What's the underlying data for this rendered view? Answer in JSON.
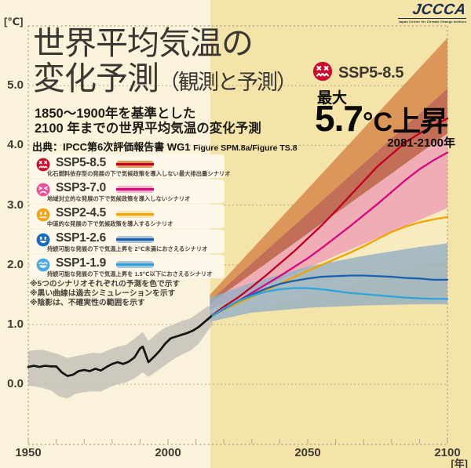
{
  "logo": {
    "name": "JCCCA",
    "tagline": "Japan Center for Climate Change Actions"
  },
  "header": {
    "y_unit": "[℃]",
    "title_line1": "世界平均気温の",
    "title_line2": "変化予測",
    "title_suffix": "（観測と予測）",
    "subtitle_line1": "1850～1900年を基準とした",
    "subtitle_line2": "2100 年までの世界平均気温の変化予測",
    "source_prefix": "出典：IPCC第6次評価報告書 WG1 ",
    "source_figure": "Figure SPM.8a/Figure TS.8"
  },
  "callout": {
    "scenario": "SSP5-8.5",
    "face": "dead",
    "face_color": "#C8102E",
    "max_label": "最大",
    "value": "5.7",
    "unit": "°C",
    "rise": "上昇",
    "period": "2081-2100年"
  },
  "legend": {
    "items": [
      {
        "id": "ssp585",
        "label": "SSP5-8.5",
        "desc": "化石燃料依存型の発展の下で気候政策を導入しない最大排出量シナリオ",
        "face": "dead",
        "face_color": "#C8102E",
        "line_color": "#C00021",
        "band_color": "#E09A5E"
      },
      {
        "id": "ssp370",
        "label": "SSP3-7.0",
        "desc": "地域対立的な発展の下で気候政策を導入しないシナリオ",
        "face": "sad",
        "face_color": "#E75297",
        "line_color": "#D4087E",
        "band_color": "#F0B4C4"
      },
      {
        "id": "ssp245",
        "label": "SSP2-4.5",
        "desc": "中道的な発展の下で気候政策を導入するシナリオ",
        "face": "neutral",
        "face_color": "#F0A51F",
        "line_color": "#F0A400",
        "band_color": "#F6E6B4"
      },
      {
        "id": "ssp126",
        "label": "SSP1-2.6",
        "desc": "持続可能な発展の下で気温上昇を 2℃未満におさえるシナリオ",
        "face": "happy",
        "face_color": "#1B6CC0",
        "line_color": "#1C5FAE",
        "band_color": "#A9C3D6"
      },
      {
        "id": "ssp119",
        "label": "SSP1-1.9",
        "desc": "持続可能な発展の下で気温上昇を 1.5℃以下におさえるシナリオ",
        "face": "grin",
        "face_color": "#4AACDE",
        "line_color": "#2FA3DC",
        "band_color": "#A9C3D6"
      }
    ]
  },
  "footnotes": [
    "※5つのシナリオそれぞれの予測を色で示す",
    "※黒い曲線は過去シミュレーションを示す",
    "※陰影は、不確実性の範囲を示す"
  ],
  "chart_data": {
    "type": "line",
    "title": "世界平均気温の変化予測（観測と予測）",
    "subtitle": "1850～1900年を基準とした2100年までの世界平均気温の変化予測",
    "xlabel": "[年]",
    "ylabel": "[℃]",
    "xlim": [
      1950,
      2100
    ],
    "ylim": [
      -1.0,
      6.0
    ],
    "x_ticks": [
      1950,
      2000,
      2050,
      2100
    ],
    "y_ticks": [
      "0.0",
      "1.0",
      "2.0",
      "3.0",
      "4.0",
      "5.0"
    ],
    "grid": true,
    "legend_position": "left",
    "split_year": 2015,
    "max_annotation": {
      "scenario": "SSP5-8.5",
      "max_rise_c": 5.7,
      "period": "2081-2100"
    },
    "bands": [
      {
        "name": "historical-range",
        "color": "#CAC6BD",
        "opacity": 0.95,
        "points": [
          [
            1950,
            -0.02,
            0.56
          ],
          [
            1955,
            -0.06,
            0.58
          ],
          [
            1958,
            -0.1,
            0.54
          ],
          [
            1961,
            -0.2,
            0.5
          ],
          [
            1964,
            -0.24,
            0.44
          ],
          [
            1967,
            -0.16,
            0.47
          ],
          [
            1970,
            -0.13,
            0.5
          ],
          [
            1973,
            -0.12,
            0.53
          ],
          [
            1976,
            -0.12,
            0.52
          ],
          [
            1979,
            -0.05,
            0.58
          ],
          [
            1982,
            0.0,
            0.63
          ],
          [
            1985,
            0.03,
            0.66
          ],
          [
            1988,
            0.1,
            0.76
          ],
          [
            1991,
            0.2,
            0.88
          ],
          [
            1993,
            0.12,
            0.72
          ],
          [
            1996,
            0.22,
            0.85
          ],
          [
            1999,
            0.32,
            0.95
          ],
          [
            2002,
            0.42,
            1.0
          ],
          [
            2005,
            0.5,
            1.06
          ],
          [
            2008,
            0.56,
            1.1
          ],
          [
            2011,
            0.68,
            1.2
          ],
          [
            2014,
            0.88,
            1.3
          ],
          [
            2016,
            1.0,
            1.32
          ]
        ]
      },
      {
        "name": "ssp245-range",
        "color": "#F7EBC1",
        "opacity": 0.95,
        "points": [
          [
            2015,
            1.05,
            1.25
          ],
          [
            2100,
            2.1,
            2.95
          ]
        ]
      },
      {
        "name": "ssp370-range",
        "color": "#EFAAB6",
        "opacity": 0.95,
        "points": [
          [
            2015,
            1.25,
            1.35
          ],
          [
            2100,
            2.95,
            4.2
          ]
        ]
      },
      {
        "name": "ssp370-ssp585-overlap",
        "color": "#BE6450",
        "opacity": 0.92,
        "points": [
          [
            2015,
            1.35,
            1.4
          ],
          [
            2100,
            4.2,
            4.95
          ]
        ]
      },
      {
        "name": "ssp585-range",
        "color": "#DB9154",
        "opacity": 0.95,
        "points": [
          [
            2015,
            1.4,
            1.5
          ],
          [
            2100,
            4.95,
            5.8
          ]
        ]
      },
      {
        "name": "ssp126-ssp119-range",
        "color": "#93AEC2",
        "opacity": 0.8,
        "points": [
          [
            2015,
            1.05,
            1.45
          ],
          [
            2030,
            1.2,
            1.7
          ],
          [
            2050,
            1.28,
            1.97
          ],
          [
            2070,
            1.32,
            2.15
          ],
          [
            2090,
            1.34,
            2.3
          ],
          [
            2100,
            1.34,
            2.36
          ]
        ]
      }
    ],
    "series": [
      {
        "name": "historical",
        "label": "過去シミュレーション",
        "color": "#141414",
        "width": 2.7,
        "points": [
          [
            1950,
            0.29
          ],
          [
            1952,
            0.31
          ],
          [
            1954,
            0.29
          ],
          [
            1956,
            0.31
          ],
          [
            1958,
            0.3
          ],
          [
            1960,
            0.3
          ],
          [
            1962,
            0.2
          ],
          [
            1964,
            0.14
          ],
          [
            1966,
            0.16
          ],
          [
            1968,
            0.22
          ],
          [
            1970,
            0.24
          ],
          [
            1972,
            0.22
          ],
          [
            1974,
            0.26
          ],
          [
            1976,
            0.23
          ],
          [
            1978,
            0.29
          ],
          [
            1980,
            0.34
          ],
          [
            1982,
            0.37
          ],
          [
            1984,
            0.34
          ],
          [
            1986,
            0.38
          ],
          [
            1988,
            0.45
          ],
          [
            1990,
            0.6
          ],
          [
            1991,
            0.63
          ],
          [
            1993,
            0.37
          ],
          [
            1995,
            0.46
          ],
          [
            1997,
            0.56
          ],
          [
            1999,
            0.68
          ],
          [
            2001,
            0.77
          ],
          [
            2003,
            0.8
          ],
          [
            2005,
            0.83
          ],
          [
            2007,
            0.86
          ],
          [
            2009,
            0.9
          ],
          [
            2011,
            0.96
          ],
          [
            2013,
            1.04
          ],
          [
            2016,
            1.16
          ]
        ]
      },
      {
        "name": "ssp585",
        "label": "SSP5-8.5",
        "color": "#C00021",
        "width": 2.3,
        "points": [
          [
            2016,
            1.16
          ],
          [
            2020,
            1.3
          ],
          [
            2025,
            1.45
          ],
          [
            2030,
            1.63
          ],
          [
            2035,
            1.82
          ],
          [
            2040,
            2.02
          ],
          [
            2045,
            2.22
          ],
          [
            2050,
            2.44
          ],
          [
            2055,
            2.66
          ],
          [
            2060,
            2.9
          ],
          [
            2065,
            3.15
          ],
          [
            2070,
            3.4
          ],
          [
            2075,
            3.65
          ],
          [
            2080,
            3.85
          ],
          [
            2085,
            4.05
          ],
          [
            2090,
            4.2
          ],
          [
            2095,
            4.33
          ],
          [
            2100,
            4.45
          ]
        ]
      },
      {
        "name": "ssp370",
        "label": "SSP3-7.0",
        "color": "#D4087E",
        "width": 2.3,
        "points": [
          [
            2016,
            1.15
          ],
          [
            2020,
            1.26
          ],
          [
            2025,
            1.39
          ],
          [
            2030,
            1.53
          ],
          [
            2035,
            1.67
          ],
          [
            2040,
            1.81
          ],
          [
            2045,
            1.96
          ],
          [
            2050,
            2.11
          ],
          [
            2055,
            2.28
          ],
          [
            2060,
            2.46
          ],
          [
            2065,
            2.64
          ],
          [
            2070,
            2.83
          ],
          [
            2075,
            3.02
          ],
          [
            2080,
            3.22
          ],
          [
            2085,
            3.42
          ],
          [
            2090,
            3.6
          ],
          [
            2095,
            3.75
          ],
          [
            2100,
            3.88
          ]
        ]
      },
      {
        "name": "ssp245",
        "label": "SSP2-4.5",
        "color": "#F0A400",
        "width": 2.3,
        "points": [
          [
            2016,
            1.15
          ],
          [
            2020,
            1.25
          ],
          [
            2025,
            1.36
          ],
          [
            2030,
            1.46
          ],
          [
            2035,
            1.57
          ],
          [
            2040,
            1.68
          ],
          [
            2045,
            1.79
          ],
          [
            2050,
            1.9
          ],
          [
            2055,
            2.0
          ],
          [
            2060,
            2.1
          ],
          [
            2065,
            2.2
          ],
          [
            2070,
            2.31
          ],
          [
            2075,
            2.43
          ],
          [
            2080,
            2.55
          ],
          [
            2085,
            2.64
          ],
          [
            2090,
            2.71
          ],
          [
            2095,
            2.76
          ],
          [
            2100,
            2.8
          ]
        ]
      },
      {
        "name": "ssp126",
        "label": "SSP1-2.6",
        "color": "#1C5FAE",
        "width": 2.3,
        "points": [
          [
            2016,
            1.15
          ],
          [
            2020,
            1.26
          ],
          [
            2025,
            1.39
          ],
          [
            2030,
            1.5
          ],
          [
            2035,
            1.6
          ],
          [
            2040,
            1.68
          ],
          [
            2045,
            1.73
          ],
          [
            2050,
            1.77
          ],
          [
            2055,
            1.8
          ],
          [
            2060,
            1.81
          ],
          [
            2065,
            1.82
          ],
          [
            2070,
            1.82
          ],
          [
            2075,
            1.81
          ],
          [
            2080,
            1.8
          ],
          [
            2085,
            1.78
          ],
          [
            2090,
            1.77
          ],
          [
            2095,
            1.75
          ],
          [
            2100,
            1.75
          ]
        ]
      },
      {
        "name": "ssp119",
        "label": "SSP1-1.9",
        "color": "#2FA3DC",
        "width": 2.3,
        "points": [
          [
            2016,
            1.15
          ],
          [
            2020,
            1.27
          ],
          [
            2025,
            1.39
          ],
          [
            2030,
            1.48
          ],
          [
            2035,
            1.55
          ],
          [
            2040,
            1.59
          ],
          [
            2045,
            1.61
          ],
          [
            2050,
            1.61
          ],
          [
            2055,
            1.59
          ],
          [
            2060,
            1.56
          ],
          [
            2065,
            1.53
          ],
          [
            2070,
            1.51
          ],
          [
            2075,
            1.49
          ],
          [
            2080,
            1.47
          ],
          [
            2085,
            1.45
          ],
          [
            2090,
            1.44
          ],
          [
            2095,
            1.43
          ],
          [
            2100,
            1.43
          ]
        ]
      }
    ]
  }
}
